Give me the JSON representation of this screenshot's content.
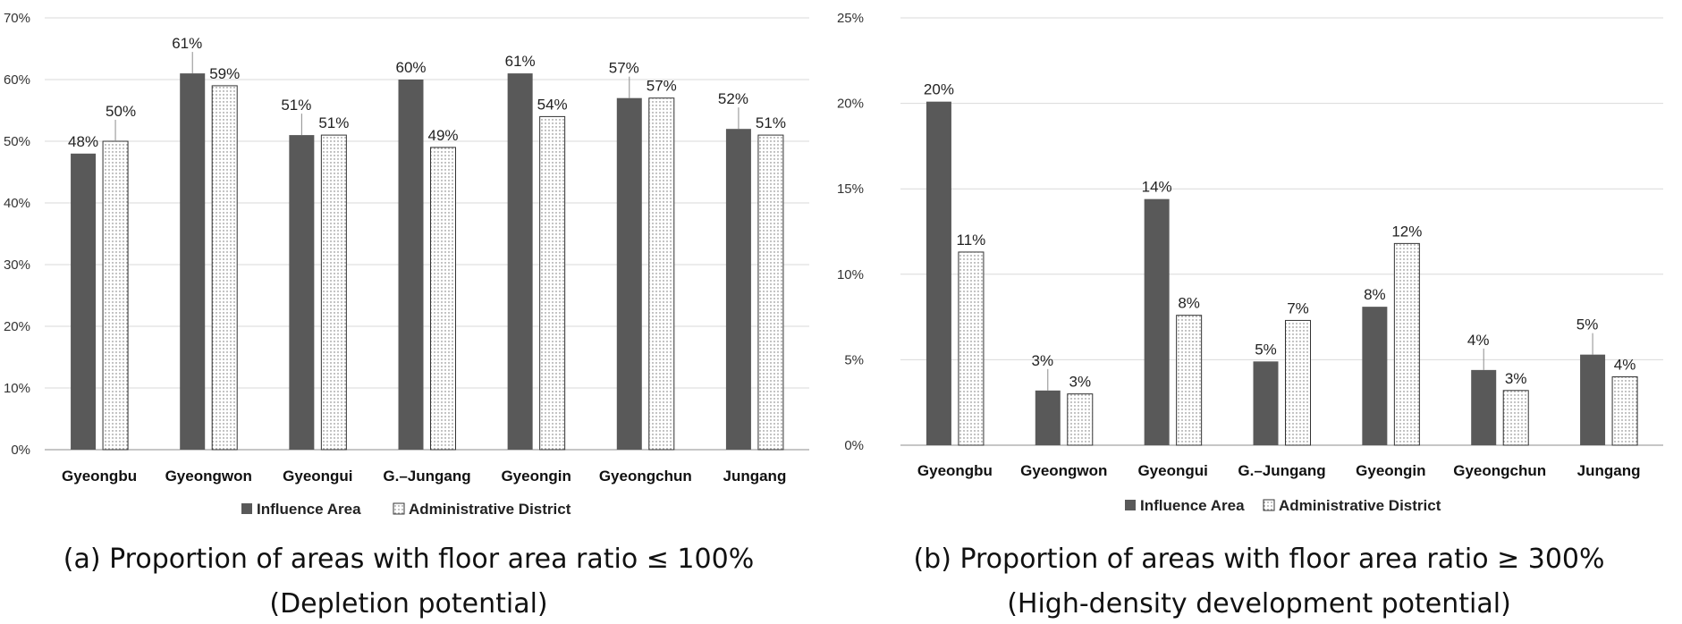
{
  "chart_data": [
    {
      "type": "bar",
      "categories": [
        "Gyeongbu",
        "Gyeongwon",
        "Gyeongui",
        "G.–Jungang",
        "Gyeongin",
        "Gyeongchun",
        "Jungang"
      ],
      "series": [
        {
          "name": "Influence Area",
          "values": [
            48,
            61,
            51,
            60,
            61,
            57,
            52
          ],
          "labels": [
            "48%",
            "61%",
            "51%",
            "60%",
            "61%",
            "57%",
            "52%"
          ],
          "color": "#595959"
        },
        {
          "name": "Administrative District",
          "values": [
            50,
            59,
            51,
            49,
            54,
            57,
            51
          ],
          "labels": [
            "50%",
            "59%",
            "51%",
            "49%",
            "54%",
            "57%",
            "51%"
          ],
          "color": "#ffffff"
        }
      ],
      "ylim": [
        0,
        70
      ],
      "yticks": [
        "0%",
        "10%",
        "20%",
        "30%",
        "40%",
        "50%",
        "60%",
        "70%"
      ],
      "grid": true,
      "legend": "bottom",
      "caption_line1": "(a) Proportion of areas with floor area ratio ≤ 100%",
      "caption_line2": "(Depletion potential)"
    },
    {
      "type": "bar",
      "categories": [
        "Gyeongbu",
        "Gyeongwon",
        "Gyeongui",
        "G.–Jungang",
        "Gyeongin",
        "Gyeongchun",
        "Jungang"
      ],
      "series": [
        {
          "name": "Influence Area",
          "values": [
            20.1,
            3.2,
            14.4,
            4.9,
            8.1,
            4.4,
            5.3
          ],
          "labels": [
            "20%",
            "3%",
            "14%",
            "5%",
            "8%",
            "4%",
            "5%"
          ],
          "color": "#595959"
        },
        {
          "name": "Administrative District",
          "values": [
            11.3,
            3.0,
            7.6,
            7.3,
            11.8,
            3.2,
            4.0
          ],
          "labels": [
            "11%",
            "3%",
            "8%",
            "7%",
            "12%",
            "3%",
            "4%"
          ],
          "color": "#ffffff"
        }
      ],
      "ylim": [
        0,
        25
      ],
      "yticks": [
        "0%",
        "5%",
        "10%",
        "15%",
        "20%",
        "25%"
      ],
      "grid": true,
      "legend": "bottom",
      "caption_line1": "(b) Proportion of areas with floor area ratio ≥ 300%",
      "caption_line2": "(High-density development potential)"
    }
  ]
}
